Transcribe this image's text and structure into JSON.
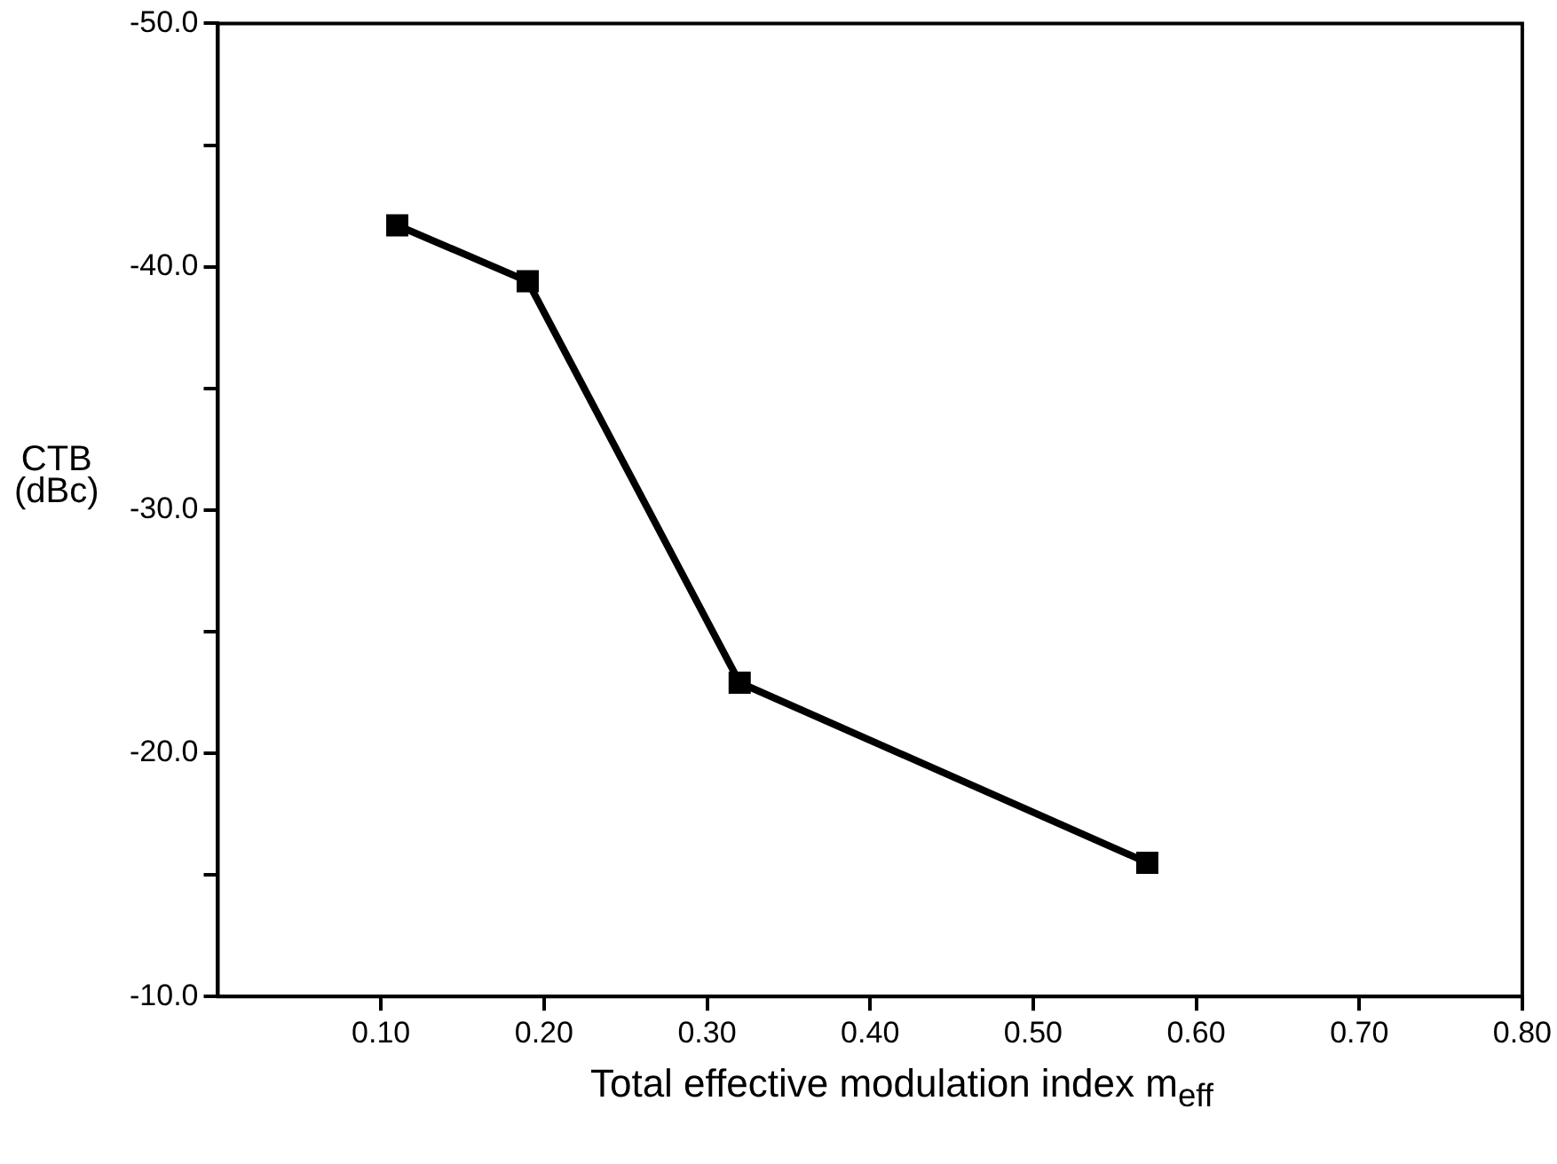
{
  "chart_data": {
    "type": "line",
    "xlabel": "Total effective modulation index m$_{eff}$",
    "ylabel": "CTB\n(dBc)",
    "x": [
      0.11,
      0.19,
      0.32,
      0.57
    ],
    "series": [
      {
        "color": "#000000",
        "values": [
          -41.7,
          -39.4,
          -22.9,
          -15.5
        ]
      }
    ],
    "xlim": [
      0,
      0.8
    ],
    "xticks": [
      {
        "value": 0.1,
        "label": "0.10"
      },
      {
        "value": 0.2,
        "label": "0.20"
      },
      {
        "value": 0.3,
        "label": "0.30"
      },
      {
        "value": 0.4,
        "label": "0.40"
      },
      {
        "value": 0.5,
        "label": "0.50"
      },
      {
        "value": 0.6,
        "label": "0.60"
      },
      {
        "value": 0.7,
        "label": "0.70"
      },
      {
        "value": 0.8,
        "label": "0.80"
      }
    ],
    "ylim": [
      -10,
      -50
    ],
    "yticks": [
      {
        "value": -50,
        "label": "-50.0"
      },
      {
        "value": -45,
        "label": null
      },
      {
        "value": -40,
        "label": "-40.0"
      },
      {
        "value": -35,
        "label": null
      },
      {
        "value": -30,
        "label": "-30.0"
      },
      {
        "value": -25,
        "label": null
      },
      {
        "value": -20,
        "label": "-20.0"
      },
      {
        "value": -15,
        "label": null
      },
      {
        "value": -10,
        "label": "-10.0"
      }
    ],
    "grid": false,
    "legend": false,
    "marker": "square",
    "line_style": "solid"
  }
}
